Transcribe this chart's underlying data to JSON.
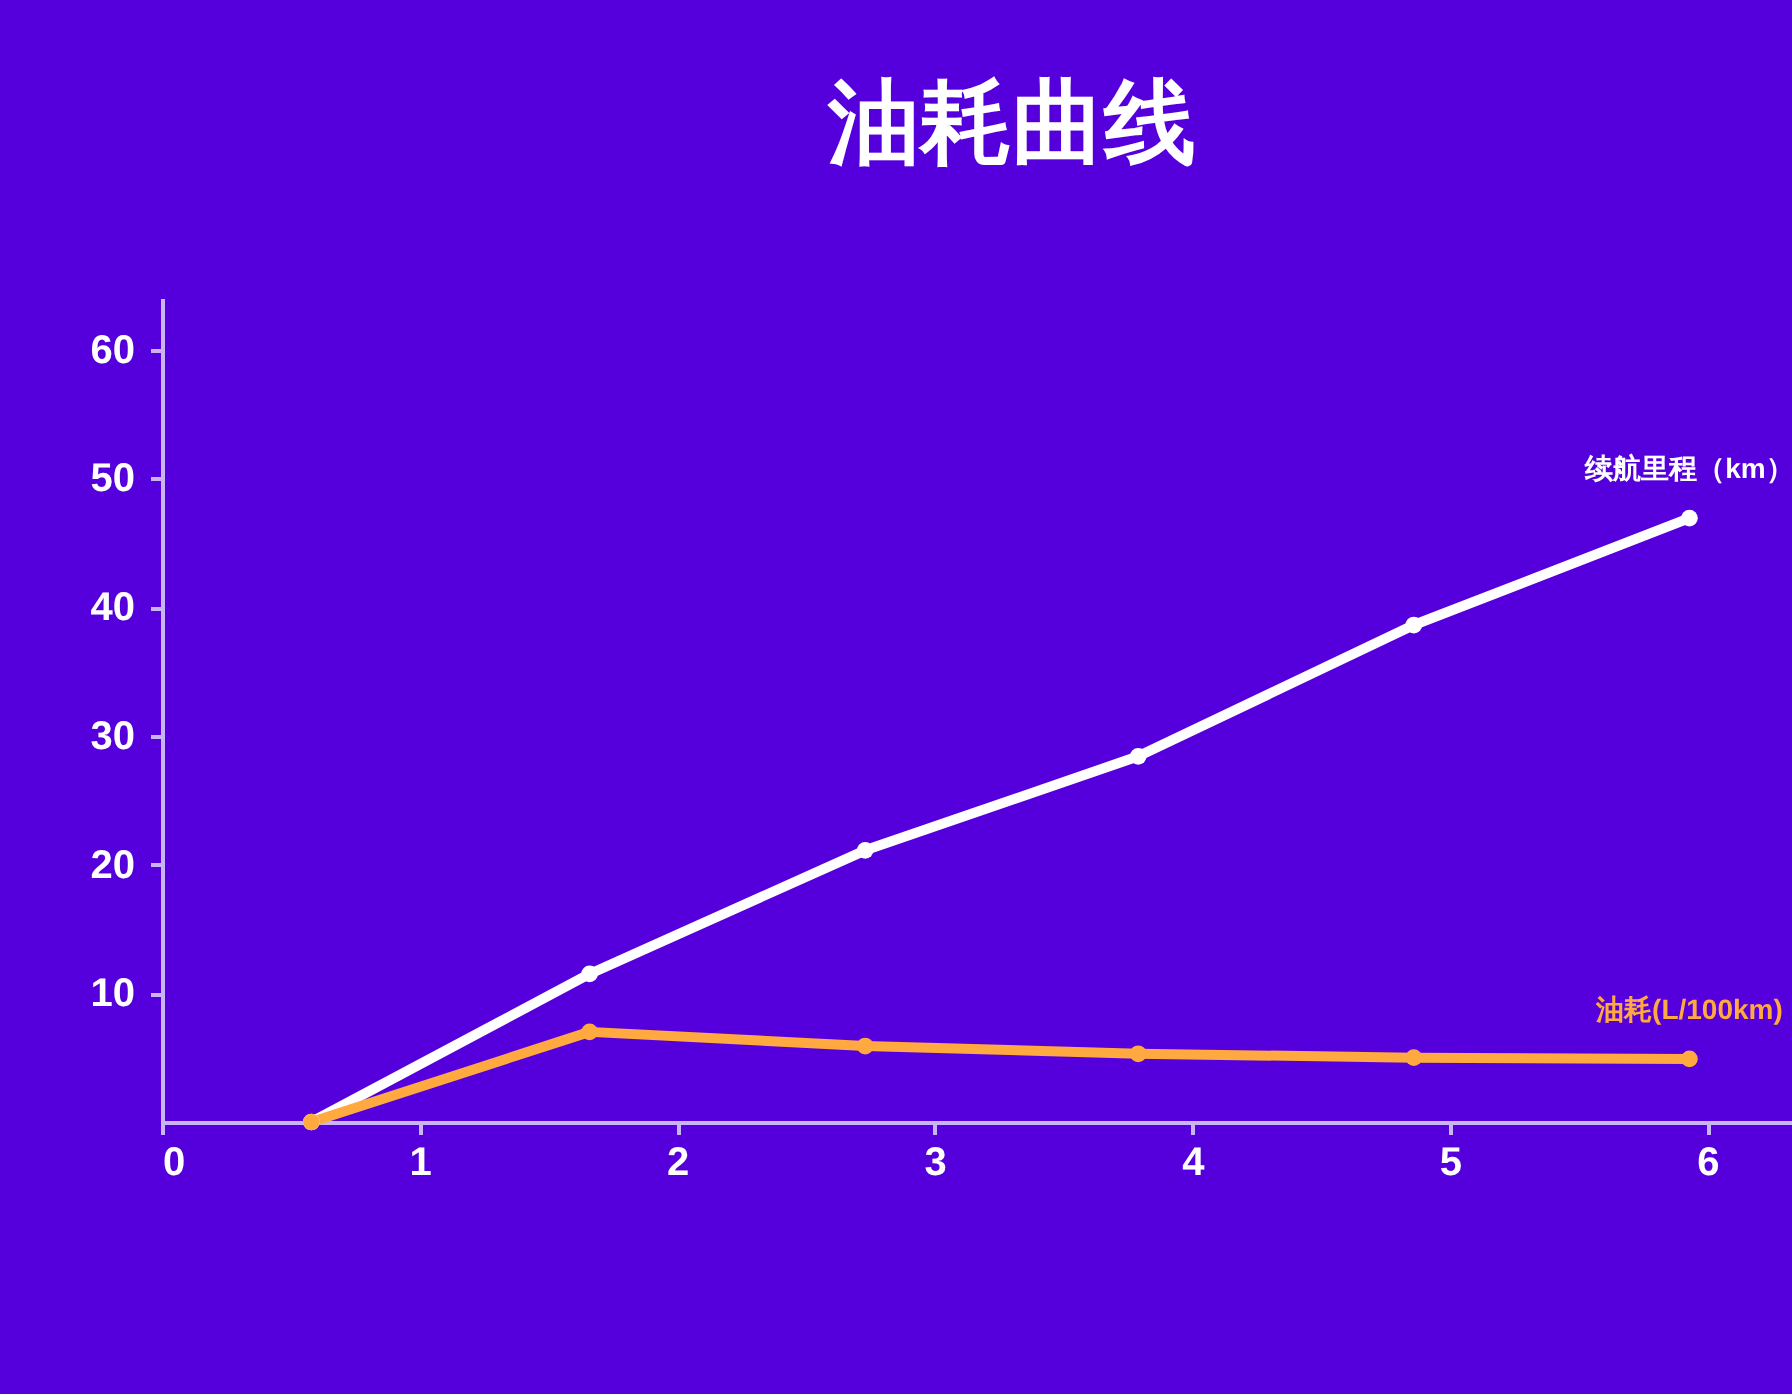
{
  "chart_data": {
    "type": "line",
    "title": "油耗曲线",
    "x": [
      0.58,
      1.66,
      2.73,
      3.79,
      4.86,
      5.93
    ],
    "series": [
      {
        "name": "续航里程（km）",
        "color": "#ffffff",
        "values": [
          0,
          11.5,
          21.1,
          28.4,
          38.6,
          46.9
        ]
      },
      {
        "name": "油耗(L/100km)",
        "color": "#ffa940",
        "values": [
          0,
          7.0,
          5.9,
          5.3,
          5.0,
          4.9
        ]
      }
    ],
    "xlim": [
      0,
      6.6
    ],
    "xticks": [
      0,
      1,
      2,
      3,
      4,
      5,
      6
    ],
    "ylim": [
      0,
      64
    ],
    "yticks": [
      10,
      20,
      30,
      40,
      50,
      60
    ],
    "grid": false,
    "legend": false,
    "marker": "circle",
    "line_style": "solid"
  }
}
